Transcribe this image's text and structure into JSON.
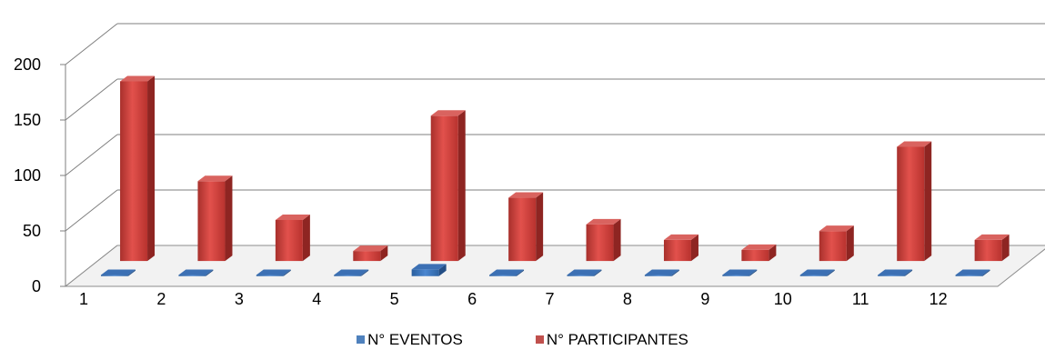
{
  "chart_data": {
    "type": "bar",
    "subtype": "3d-clustered-column",
    "title": "",
    "xlabel": "",
    "ylabel": "",
    "ylim": [
      0,
      200
    ],
    "yticks": [
      "0",
      "50",
      "100",
      "150",
      "200"
    ],
    "categories": [
      "1",
      "2",
      "3",
      "4",
      "5",
      "6",
      "7",
      "8",
      "9",
      "10",
      "11",
      "12"
    ],
    "series": [
      {
        "name": "N° EVENTOS",
        "color": "#4f81bd",
        "values": [
          1,
          1,
          1,
          1,
          6,
          1,
          1,
          1,
          1,
          1,
          1,
          1
        ]
      },
      {
        "name": "N° PARTICIPANTES",
        "color": "#c0504d",
        "values": [
          162,
          72,
          37,
          9,
          131,
          57,
          33,
          19,
          10,
          27,
          103,
          19
        ]
      }
    ],
    "grid": true,
    "legend": "bottom"
  }
}
